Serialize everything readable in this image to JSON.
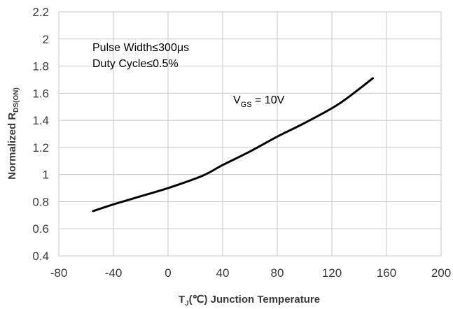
{
  "chart_data": {
    "type": "line",
    "title": "",
    "xlabel_main": "T",
    "xlabel_sub": "J",
    "xlabel_rest": "(℃) Junction Temperature",
    "ylabel_main": "Normalized R",
    "ylabel_sub": "DS(ON)",
    "xlim": [
      -80,
      200
    ],
    "ylim": [
      0.4,
      2.2
    ],
    "x_ticks": [
      -80,
      -40,
      0,
      40,
      80,
      120,
      160,
      200
    ],
    "y_ticks": [
      0.4,
      0.6,
      0.8,
      1.0,
      1.2,
      1.4,
      1.6,
      1.8,
      2.0,
      2.2
    ],
    "x_tick_labels": [
      "-80",
      "-40",
      "0",
      "40",
      "80",
      "120",
      "160",
      "200"
    ],
    "y_tick_labels": [
      "0.4",
      "0.6",
      "0.8",
      "1",
      "1.2",
      "1.4",
      "1.6",
      "1.8",
      "2",
      "2.2"
    ],
    "grid": true,
    "series": [
      {
        "name": "VGS = 10V",
        "x": [
          -55,
          -40,
          -20,
          0,
          25,
          40,
          60,
          80,
          100,
          125,
          150
        ],
        "y": [
          0.73,
          0.78,
          0.84,
          0.9,
          0.99,
          1.07,
          1.17,
          1.28,
          1.38,
          1.52,
          1.71
        ],
        "color": "#000000"
      }
    ],
    "annotations": {
      "line1": "Pulse Width≤300μs",
      "line2": "Duty Cycle≤0.5%",
      "vgs_main": "V",
      "vgs_sub": "GS",
      "vgs_rest": " = 10V"
    }
  }
}
